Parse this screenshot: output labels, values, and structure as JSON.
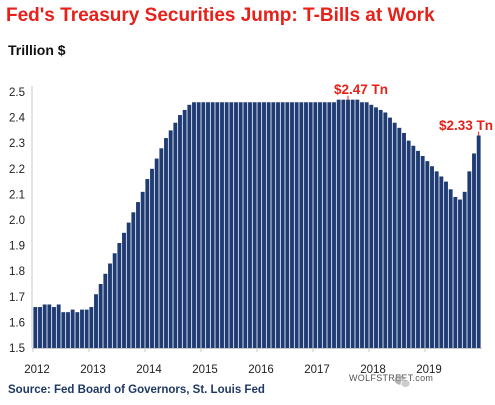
{
  "source": "Source: Fed Board of Governors, St. Louis Fed",
  "watermark": "WOLFSTREET.com",
  "colors": {
    "title": "#e8201a",
    "bar": "#1f3b73",
    "annotation": "#e8201a",
    "source": "#1f3864"
  },
  "chart_data": {
    "type": "bar",
    "title": "Fed's Treasury Securities Jump: T-Bills at Work",
    "ylabel": "Trillion $",
    "ylim": [
      1.5,
      2.5
    ],
    "yticks": [
      "2.5",
      "2.4",
      "2.3",
      "2.2",
      "2.1",
      "2.0",
      "1.9",
      "1.8",
      "1.7",
      "1.6",
      "1.5"
    ],
    "xlim": [
      "2012-01",
      "2019-12"
    ],
    "xticks": [
      "2012",
      "2013",
      "2014",
      "2015",
      "2016",
      "2017",
      "2018",
      "2019"
    ],
    "grid": false,
    "x": [
      "2012-01",
      "2012-02",
      "2012-03",
      "2012-04",
      "2012-05",
      "2012-06",
      "2012-07",
      "2012-08",
      "2012-09",
      "2012-10",
      "2012-11",
      "2012-12",
      "2013-01",
      "2013-02",
      "2013-03",
      "2013-04",
      "2013-05",
      "2013-06",
      "2013-07",
      "2013-08",
      "2013-09",
      "2013-10",
      "2013-11",
      "2013-12",
      "2014-01",
      "2014-02",
      "2014-03",
      "2014-04",
      "2014-05",
      "2014-06",
      "2014-07",
      "2014-08",
      "2014-09",
      "2014-10",
      "2014-11",
      "2014-12",
      "2015-01",
      "2015-02",
      "2015-03",
      "2015-04",
      "2015-05",
      "2015-06",
      "2015-07",
      "2015-08",
      "2015-09",
      "2015-10",
      "2015-11",
      "2015-12",
      "2016-01",
      "2016-02",
      "2016-03",
      "2016-04",
      "2016-05",
      "2016-06",
      "2016-07",
      "2016-08",
      "2016-09",
      "2016-10",
      "2016-11",
      "2016-12",
      "2017-01",
      "2017-02",
      "2017-03",
      "2017-04",
      "2017-05",
      "2017-06",
      "2017-07",
      "2017-08",
      "2017-09",
      "2017-10",
      "2017-11",
      "2017-12",
      "2018-01",
      "2018-02",
      "2018-03",
      "2018-04",
      "2018-05",
      "2018-06",
      "2018-07",
      "2018-08",
      "2018-09",
      "2018-10",
      "2018-11",
      "2018-12",
      "2019-01",
      "2019-02",
      "2019-03",
      "2019-04",
      "2019-05",
      "2019-06",
      "2019-07",
      "2019-08",
      "2019-09",
      "2019-10",
      "2019-11",
      "2019-12"
    ],
    "values": [
      1.66,
      1.66,
      1.67,
      1.67,
      1.66,
      1.67,
      1.64,
      1.64,
      1.65,
      1.64,
      1.65,
      1.65,
      1.66,
      1.71,
      1.75,
      1.79,
      1.83,
      1.87,
      1.91,
      1.95,
      1.99,
      2.03,
      2.07,
      2.11,
      2.16,
      2.2,
      2.24,
      2.28,
      2.32,
      2.35,
      2.38,
      2.41,
      2.43,
      2.45,
      2.46,
      2.46,
      2.46,
      2.46,
      2.46,
      2.46,
      2.46,
      2.46,
      2.46,
      2.46,
      2.46,
      2.46,
      2.46,
      2.46,
      2.46,
      2.46,
      2.46,
      2.46,
      2.46,
      2.46,
      2.46,
      2.46,
      2.46,
      2.46,
      2.46,
      2.46,
      2.46,
      2.46,
      2.46,
      2.46,
      2.46,
      2.47,
      2.47,
      2.47,
      2.47,
      2.47,
      2.46,
      2.46,
      2.45,
      2.44,
      2.43,
      2.42,
      2.4,
      2.38,
      2.36,
      2.34,
      2.31,
      2.29,
      2.27,
      2.25,
      2.23,
      2.21,
      2.19,
      2.17,
      2.15,
      2.12,
      2.09,
      2.08,
      2.11,
      2.19,
      2.26,
      2.33
    ],
    "annotations": [
      {
        "text": "$2.47 Tn",
        "x": "2017-08",
        "y": 2.47
      },
      {
        "text": "$2.33 Tn",
        "x": "2019-12",
        "y": 2.33
      }
    ]
  }
}
